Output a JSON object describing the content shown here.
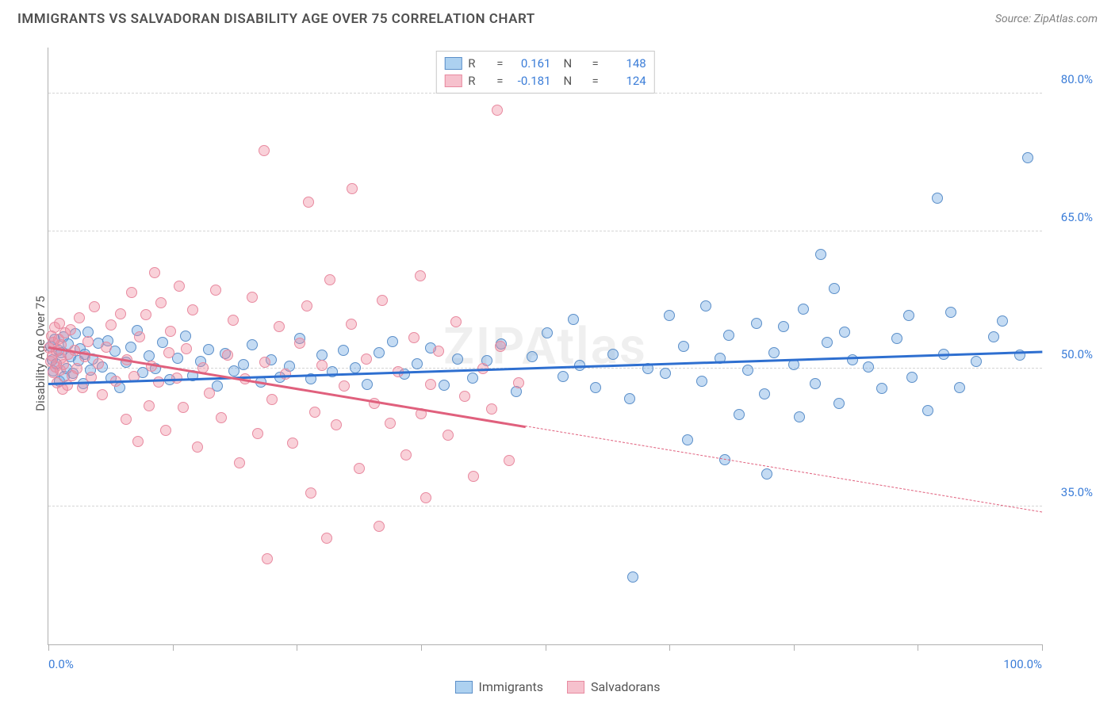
{
  "title": "IMMIGRANTS VS SALVADORAN DISABILITY AGE OVER 75 CORRELATION CHART",
  "source_label": "Source: ZipAtlas.com",
  "watermark": "ZIPAtlas",
  "ylabel": "Disability Age Over 75",
  "chart": {
    "type": "scatter",
    "background_color": "#ffffff",
    "grid_color": "#d5d5d5",
    "axis_color": "#b0b0b0",
    "xlim": [
      0,
      100
    ],
    "ylim": [
      20,
      85
    ],
    "x_tick_positions": [
      0,
      12.5,
      25,
      37.5,
      50,
      62.5,
      75,
      87.5,
      100
    ],
    "x_tick_labels": {
      "0": "0.0%",
      "100": "100.0%"
    },
    "y_ticks": [
      35,
      50,
      65,
      80
    ],
    "y_tick_labels": [
      "35.0%",
      "50.0%",
      "65.0%",
      "80.0%"
    ],
    "marker_radius": 7,
    "series": [
      {
        "id": "immigrants",
        "label": "Immigrants",
        "color_fill": "rgba(107,164,225,0.40)",
        "color_stroke": "#5b8fc9",
        "swatch_fill": "#add1f0",
        "swatch_stroke": "#5b8fc9",
        "trend_color": "#2e6fd0",
        "trend_width": 3,
        "trend": {
          "x1": 0,
          "y1": 48.5,
          "x2": 100,
          "y2": 52.0,
          "solid_until_x": 100
        },
        "stats": {
          "R": "0.161",
          "N": "148"
        },
        "points": [
          [
            0.2,
            52.5
          ],
          [
            0.4,
            51.0
          ],
          [
            0.5,
            49.8
          ],
          [
            0.6,
            53.2
          ],
          [
            0.8,
            50.6
          ],
          [
            1.0,
            52.0
          ],
          [
            1.1,
            48.7
          ],
          [
            1.3,
            51.8
          ],
          [
            1.5,
            53.5
          ],
          [
            1.6,
            49.2
          ],
          [
            1.8,
            50.0
          ],
          [
            2.0,
            52.7
          ],
          [
            2.2,
            51.3
          ],
          [
            2.5,
            49.5
          ],
          [
            2.7,
            53.8
          ],
          [
            3.0,
            50.9
          ],
          [
            3.2,
            52.2
          ],
          [
            3.5,
            48.4
          ],
          [
            3.7,
            51.6
          ],
          [
            4.0,
            54.0
          ],
          [
            4.2,
            49.9
          ],
          [
            4.5,
            51.1
          ],
          [
            5.0,
            52.8
          ],
          [
            5.4,
            50.2
          ],
          [
            6.0,
            53.1
          ],
          [
            6.3,
            49.0
          ],
          [
            6.7,
            51.9
          ],
          [
            7.2,
            48.0
          ],
          [
            7.8,
            50.7
          ],
          [
            8.3,
            52.4
          ],
          [
            8.9,
            54.2
          ],
          [
            9.5,
            49.6
          ],
          [
            10.1,
            51.4
          ],
          [
            10.8,
            50.0
          ],
          [
            11.5,
            52.9
          ],
          [
            12.2,
            48.8
          ],
          [
            13.0,
            51.2
          ],
          [
            13.8,
            53.6
          ],
          [
            14.5,
            49.3
          ],
          [
            15.3,
            50.8
          ],
          [
            16.1,
            52.1
          ],
          [
            17.0,
            48.1
          ],
          [
            17.8,
            51.7
          ],
          [
            18.7,
            49.8
          ],
          [
            19.6,
            50.5
          ],
          [
            20.5,
            52.6
          ],
          [
            21.4,
            48.6
          ],
          [
            22.4,
            51.0
          ],
          [
            23.3,
            49.1
          ],
          [
            24.3,
            50.3
          ],
          [
            25.3,
            53.3
          ],
          [
            26.4,
            48.9
          ],
          [
            27.5,
            51.5
          ],
          [
            28.6,
            49.7
          ],
          [
            29.7,
            52.0
          ],
          [
            30.9,
            50.1
          ],
          [
            32.1,
            48.3
          ],
          [
            33.3,
            51.8
          ],
          [
            34.6,
            53.0
          ],
          [
            35.8,
            49.4
          ],
          [
            37.1,
            50.6
          ],
          [
            38.5,
            52.3
          ],
          [
            39.8,
            48.2
          ],
          [
            41.2,
            51.1
          ],
          [
            42.7,
            49.0
          ],
          [
            44.1,
            50.9
          ],
          [
            45.6,
            52.7
          ],
          [
            47.1,
            47.5
          ],
          [
            48.7,
            51.3
          ],
          [
            50.2,
            53.9
          ],
          [
            51.8,
            49.2
          ],
          [
            52.8,
            55.4
          ],
          [
            53.5,
            50.4
          ],
          [
            55.1,
            48.0
          ],
          [
            56.8,
            51.6
          ],
          [
            58.5,
            46.8
          ],
          [
            58.8,
            27.3
          ],
          [
            60.3,
            50.0
          ],
          [
            62.1,
            49.5
          ],
          [
            62.5,
            55.8
          ],
          [
            63.9,
            52.5
          ],
          [
            64.3,
            42.3
          ],
          [
            65.8,
            48.7
          ],
          [
            66.2,
            56.9
          ],
          [
            67.6,
            51.2
          ],
          [
            68.1,
            40.1
          ],
          [
            68.5,
            53.7
          ],
          [
            69.5,
            45.0
          ],
          [
            70.4,
            49.9
          ],
          [
            71.3,
            55.0
          ],
          [
            72.1,
            47.3
          ],
          [
            72.3,
            38.6
          ],
          [
            73.0,
            51.8
          ],
          [
            74.0,
            54.6
          ],
          [
            75.0,
            50.5
          ],
          [
            75.6,
            44.8
          ],
          [
            76.0,
            56.5
          ],
          [
            77.2,
            48.4
          ],
          [
            77.7,
            62.5
          ],
          [
            78.4,
            52.9
          ],
          [
            79.1,
            58.8
          ],
          [
            79.6,
            46.2
          ],
          [
            80.1,
            54.0
          ],
          [
            80.9,
            51.0
          ],
          [
            82.5,
            50.2
          ],
          [
            83.9,
            47.9
          ],
          [
            85.4,
            53.3
          ],
          [
            86.6,
            55.8
          ],
          [
            86.9,
            49.1
          ],
          [
            88.5,
            45.5
          ],
          [
            89.5,
            68.6
          ],
          [
            90.1,
            51.6
          ],
          [
            90.8,
            56.2
          ],
          [
            91.7,
            48.0
          ],
          [
            93.4,
            50.8
          ],
          [
            95.1,
            53.5
          ],
          [
            96.0,
            55.2
          ],
          [
            97.8,
            51.5
          ],
          [
            98.6,
            73.0
          ]
        ]
      },
      {
        "id": "salvadorans",
        "label": "Salvadorans",
        "color_fill": "rgba(240,140,160,0.40)",
        "color_stroke": "#e88aa0",
        "swatch_fill": "#f6c1cd",
        "swatch_stroke": "#e88aa0",
        "trend_color": "#e0607d",
        "trend_width": 3,
        "trend": {
          "x1": 0,
          "y1": 52.5,
          "x2": 100,
          "y2": 34.5,
          "solid_until_x": 48
        },
        "stats": {
          "R": "-0.181",
          "N": "124"
        },
        "points": [
          [
            0.1,
            52.3
          ],
          [
            0.2,
            50.8
          ],
          [
            0.3,
            53.6
          ],
          [
            0.4,
            51.4
          ],
          [
            0.45,
            49.6
          ],
          [
            0.5,
            52.9
          ],
          [
            0.6,
            54.5
          ],
          [
            0.7,
            50.2
          ],
          [
            0.8,
            51.9
          ],
          [
            0.9,
            48.5
          ],
          [
            1.0,
            53.2
          ],
          [
            1.1,
            55.0
          ],
          [
            1.2,
            49.9
          ],
          [
            1.25,
            51.2
          ],
          [
            1.3,
            52.6
          ],
          [
            1.4,
            47.8
          ],
          [
            1.55,
            50.5
          ],
          [
            1.7,
            53.9
          ],
          [
            1.9,
            48.2
          ],
          [
            2.0,
            51.6
          ],
          [
            2.2,
            54.3
          ],
          [
            2.4,
            49.3
          ],
          [
            2.6,
            52.0
          ],
          [
            2.9,
            50.0
          ],
          [
            3.1,
            55.6
          ],
          [
            3.4,
            48.0
          ],
          [
            3.7,
            51.3
          ],
          [
            4.0,
            53.0
          ],
          [
            4.3,
            49.1
          ],
          [
            4.6,
            56.8
          ],
          [
            5.0,
            50.6
          ],
          [
            5.4,
            47.2
          ],
          [
            5.8,
            52.4
          ],
          [
            6.3,
            54.8
          ],
          [
            6.8,
            48.7
          ],
          [
            7.3,
            56.0
          ],
          [
            7.8,
            44.5
          ],
          [
            7.9,
            51.0
          ],
          [
            8.4,
            58.3
          ],
          [
            8.6,
            49.2
          ],
          [
            9.0,
            42.1
          ],
          [
            9.2,
            53.5
          ],
          [
            9.8,
            55.9
          ],
          [
            10.1,
            46.0
          ],
          [
            10.4,
            50.3
          ],
          [
            10.7,
            60.5
          ],
          [
            11.1,
            48.6
          ],
          [
            11.3,
            57.2
          ],
          [
            11.8,
            43.3
          ],
          [
            12.1,
            51.8
          ],
          [
            12.3,
            54.1
          ],
          [
            12.9,
            49.0
          ],
          [
            13.2,
            59.0
          ],
          [
            13.6,
            45.8
          ],
          [
            13.9,
            52.2
          ],
          [
            14.5,
            56.4
          ],
          [
            15.0,
            41.5
          ],
          [
            15.6,
            50.1
          ],
          [
            16.2,
            47.4
          ],
          [
            16.8,
            58.6
          ],
          [
            17.4,
            44.7
          ],
          [
            18.0,
            51.5
          ],
          [
            18.6,
            55.3
          ],
          [
            19.2,
            39.8
          ],
          [
            19.8,
            48.9
          ],
          [
            20.5,
            57.8
          ],
          [
            21.1,
            43.0
          ],
          [
            21.7,
            73.8
          ],
          [
            21.8,
            50.7
          ],
          [
            22.0,
            29.3
          ],
          [
            22.5,
            46.7
          ],
          [
            23.2,
            54.6
          ],
          [
            23.9,
            49.4
          ],
          [
            24.6,
            41.9
          ],
          [
            25.3,
            52.8
          ],
          [
            26.0,
            56.9
          ],
          [
            26.2,
            68.2
          ],
          [
            26.4,
            36.5
          ],
          [
            26.8,
            45.3
          ],
          [
            27.5,
            50.4
          ],
          [
            28.0,
            31.6
          ],
          [
            28.3,
            59.7
          ],
          [
            29.0,
            43.9
          ],
          [
            29.8,
            48.1
          ],
          [
            30.5,
            54.9
          ],
          [
            30.6,
            69.6
          ],
          [
            31.3,
            39.2
          ],
          [
            32.0,
            51.1
          ],
          [
            32.8,
            46.2
          ],
          [
            33.3,
            32.9
          ],
          [
            33.6,
            57.5
          ],
          [
            34.4,
            44.1
          ],
          [
            35.2,
            49.7
          ],
          [
            36.0,
            40.6
          ],
          [
            36.8,
            53.4
          ],
          [
            37.4,
            60.1
          ],
          [
            37.5,
            45.1
          ],
          [
            38.0,
            36.0
          ],
          [
            38.5,
            48.3
          ],
          [
            39.3,
            51.9
          ],
          [
            40.2,
            42.8
          ],
          [
            41.0,
            55.1
          ],
          [
            41.9,
            47.0
          ],
          [
            42.8,
            38.3
          ],
          [
            43.7,
            50.0
          ],
          [
            44.6,
            45.6
          ],
          [
            45.5,
            52.5
          ],
          [
            45.2,
            78.2
          ],
          [
            46.4,
            40.0
          ],
          [
            47.3,
            48.5
          ]
        ]
      }
    ]
  },
  "legend_bottom": [
    "Immigrants",
    "Salvadorans"
  ],
  "legend_top_labels": {
    "R": "R",
    "N": "N",
    "eq": "="
  }
}
